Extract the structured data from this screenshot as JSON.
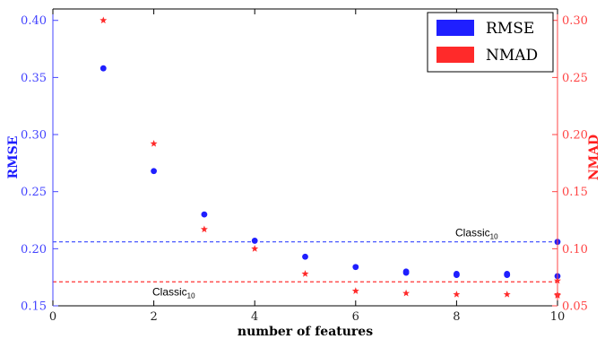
{
  "chart_data": {
    "type": "scatter",
    "xlabel": "number of features",
    "ylabel_left": "RMSE",
    "ylabel_right": "NMAD",
    "xlim": [
      0,
      10
    ],
    "ylim_left": [
      0.15,
      0.41
    ],
    "ylim_right": [
      0.05,
      0.31
    ],
    "x_ticks": [
      0,
      2,
      4,
      6,
      8,
      10
    ],
    "y_ticks_left": [
      "0.15",
      "0.20",
      "0.25",
      "0.30",
      "0.35",
      "0.40"
    ],
    "y_ticks_right": [
      "0.05",
      "0.10",
      "0.15",
      "0.20",
      "0.25",
      "0.30"
    ],
    "grid": false,
    "legend_position": "top-right",
    "series": [
      {
        "name": "RMSE",
        "axis": "left",
        "marker": "circle",
        "color": "#1f1fff",
        "points": [
          [
            1,
            0.358
          ],
          [
            2,
            0.268
          ],
          [
            3,
            0.23
          ],
          [
            4,
            0.207
          ],
          [
            5,
            0.193
          ],
          [
            6,
            0.184
          ],
          [
            7,
            0.179
          ],
          [
            7,
            0.18
          ],
          [
            8,
            0.177
          ],
          [
            8,
            0.178
          ],
          [
            9,
            0.177
          ],
          [
            9,
            0.178
          ],
          [
            10,
            0.176
          ],
          [
            10,
            0.206
          ]
        ]
      },
      {
        "name": "NMAD",
        "axis": "right",
        "marker": "star",
        "color": "#ff2a2a",
        "points": [
          [
            1,
            0.3
          ],
          [
            2,
            0.192
          ],
          [
            3,
            0.117
          ],
          [
            4,
            0.1
          ],
          [
            5,
            0.078
          ],
          [
            6,
            0.063
          ],
          [
            7,
            0.061
          ],
          [
            8,
            0.06
          ],
          [
            9,
            0.06
          ],
          [
            10,
            0.059
          ],
          [
            10,
            0.06
          ],
          [
            10,
            0.072
          ]
        ]
      }
    ],
    "reference_lines": [
      {
        "label_main": "Classic",
        "label_sub": "10",
        "axis": "left",
        "value": 0.206,
        "color": "#3344ff",
        "label_anchor": "right"
      },
      {
        "label_main": "Classic",
        "label_sub": "10",
        "axis": "right",
        "value": 0.071,
        "color": "#ff3333",
        "label_anchor": "left"
      }
    ]
  }
}
